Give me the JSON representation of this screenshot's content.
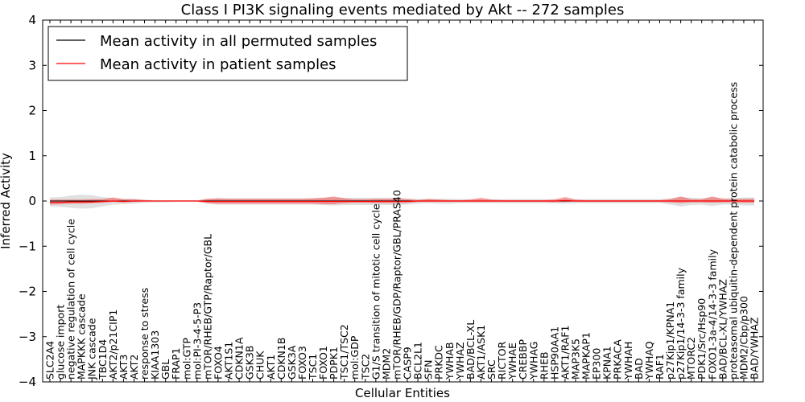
{
  "chart_data": {
    "type": "line",
    "title": "Class I PI3K signaling events mediated by Akt -- 272 samples",
    "xlabel": "Cellular Entities",
    "ylabel": "Inferred Activity",
    "ylim": [
      -4,
      4
    ],
    "yticks": [
      -4,
      -3,
      -2,
      -1,
      0,
      1,
      2,
      3,
      4
    ],
    "legend": {
      "position": "top-left",
      "entries": [
        "Mean activity in all permuted samples",
        "Mean activity in patient samples"
      ]
    },
    "categories": [
      "SLC2A4",
      "glucose import",
      "negative regulation of cell cycle",
      "MAPKKK cascade",
      "JNK cascade",
      "TBC1D4",
      "AKT2/p21CIP1",
      "AKT3",
      "AKT2",
      "response to stress",
      "KIAA1303",
      "GBL",
      "FRAP1",
      "mol:GTP",
      "mol:PI-3-4-5-P3",
      "mTOR/RHEB/GTP/Raptor/GBL",
      "FOXO4",
      "AKT1S1",
      "CDKN1A",
      "GSK3B",
      "CHUK",
      "AKT1",
      "CDKN1B",
      "GSK3A",
      "FOXO3",
      "TSC1",
      "FOXO1",
      "PDPK1",
      "TSC1/TSC2",
      "mol:GDP",
      "TSC2",
      "G1/S transition of mitotic cell cycle",
      "MDM2",
      "mTOR/RHEB/GDP/Raptor/GBL/PRAS40",
      "CASP9",
      "BCL2L1",
      "SFN",
      "PRKDC",
      "YWHAB",
      "YWHAZ",
      "BAD/BCL-XL",
      "AKT1/ASK1",
      "SRC",
      "RICTOR",
      "YWHAE",
      "CREBBP",
      "YWHAG",
      "RHEB",
      "HSP90AA1",
      "AKT1/RAF1",
      "MAP3K5",
      "MAPKAP1",
      "EP300",
      "KPNA1",
      "PRKACA",
      "YWHAH",
      "BAD",
      "YWHAQ",
      "RAF1",
      "p27Kip1/KPNA1",
      "p27Kip1/14-3-3 family",
      "MTORC2",
      "PDK1/Src/Hsp90",
      "FOXO1-3a-4/14-3-3 family",
      "BAD/BCL-XL/YWHAZ",
      "proteasomal ubiquitin-dependent protein catabolic process",
      "MDM2/Cbp/p300",
      "BAD/YWHAZ"
    ],
    "series": [
      {
        "name": "Mean activity in all permuted samples",
        "color": "#000000",
        "values": [
          0,
          0,
          0,
          0,
          0,
          0,
          0,
          0,
          0,
          0,
          0,
          0,
          0,
          0,
          0,
          0,
          0,
          0,
          0,
          0,
          0,
          0,
          0,
          0,
          0,
          0,
          0,
          0,
          0,
          0,
          0,
          0,
          0,
          0,
          0,
          0,
          0,
          0,
          0,
          0,
          0,
          0,
          0,
          0,
          0,
          0,
          0,
          0,
          0,
          0,
          0,
          0,
          0,
          0,
          0,
          0,
          0,
          0,
          0,
          0,
          0,
          0,
          0,
          0,
          0,
          0,
          0,
          0
        ],
        "band_lower": [
          -0.12,
          -0.13,
          -0.15,
          -0.17,
          -0.16,
          -0.12,
          -0.08,
          -0.07,
          -0.06,
          -0.04,
          -0.03,
          -0.03,
          -0.02,
          -0.02,
          -0.02,
          -0.06,
          -0.08,
          -0.08,
          -0.08,
          -0.08,
          -0.08,
          -0.08,
          -0.08,
          -0.08,
          -0.08,
          -0.08,
          -0.09,
          -0.1,
          -0.09,
          -0.09,
          -0.09,
          -0.09,
          -0.09,
          -0.09,
          -0.08,
          -0.06,
          -0.05,
          -0.06,
          -0.06,
          -0.05,
          -0.05,
          -0.05,
          -0.05,
          -0.05,
          -0.05,
          -0.05,
          -0.05,
          -0.05,
          -0.05,
          -0.06,
          -0.05,
          -0.05,
          -0.05,
          -0.05,
          -0.05,
          -0.05,
          -0.05,
          -0.05,
          -0.05,
          -0.08,
          -0.12,
          -0.09,
          -0.08,
          -0.11,
          -0.08,
          -0.08,
          -0.1,
          -0.1
        ],
        "band_upper": [
          0.08,
          0.09,
          0.12,
          0.14,
          0.13,
          0.09,
          0.06,
          0.05,
          0.05,
          0.03,
          0.02,
          0.02,
          0.02,
          0.02,
          0.02,
          0.05,
          0.06,
          0.06,
          0.06,
          0.06,
          0.06,
          0.06,
          0.06,
          0.06,
          0.06,
          0.06,
          0.07,
          0.08,
          0.07,
          0.07,
          0.07,
          0.07,
          0.07,
          0.07,
          0.06,
          0.05,
          0.04,
          0.05,
          0.05,
          0.04,
          0.04,
          0.04,
          0.04,
          0.04,
          0.04,
          0.04,
          0.04,
          0.04,
          0.04,
          0.05,
          0.04,
          0.04,
          0.04,
          0.04,
          0.04,
          0.04,
          0.04,
          0.04,
          0.04,
          0.06,
          0.09,
          0.07,
          0.06,
          0.08,
          0.06,
          0.06,
          0.08,
          0.08
        ]
      },
      {
        "name": "Mean activity in patient samples",
        "color": "#ff0000",
        "values": [
          -0.03,
          -0.03,
          -0.02,
          -0.02,
          -0.02,
          -0.01,
          0,
          -0.01,
          0,
          0,
          0,
          0,
          0,
          0,
          0,
          -0.01,
          -0.01,
          -0.01,
          -0.01,
          -0.01,
          -0.01,
          -0.01,
          -0.01,
          -0.01,
          -0.01,
          -0.01,
          -0.01,
          -0.01,
          -0.01,
          -0.01,
          -0.01,
          -0.01,
          -0.01,
          -0.01,
          -0.01,
          0,
          0,
          0,
          0,
          0,
          0,
          0,
          0,
          0,
          0,
          0,
          0,
          0,
          0,
          0.01,
          0,
          0,
          0,
          0,
          0,
          0,
          0,
          0,
          0,
          0,
          0,
          0,
          0,
          0,
          0,
          0,
          0,
          0
        ],
        "band_lower": [
          -0.08,
          -0.07,
          -0.06,
          -0.06,
          -0.05,
          -0.04,
          -0.02,
          -0.03,
          -0.02,
          -0.01,
          -0.01,
          -0.01,
          -0.01,
          -0.01,
          -0.01,
          -0.05,
          -0.06,
          -0.06,
          -0.06,
          -0.06,
          -0.06,
          -0.06,
          -0.06,
          -0.06,
          -0.06,
          -0.06,
          -0.07,
          -0.07,
          -0.05,
          -0.04,
          -0.04,
          -0.05,
          -0.05,
          -0.05,
          -0.04,
          -0.02,
          -0.02,
          -0.02,
          -0.02,
          -0.02,
          -0.02,
          -0.02,
          -0.02,
          -0.02,
          -0.02,
          -0.02,
          -0.02,
          -0.02,
          -0.03,
          -0.02,
          -0.02,
          -0.02,
          -0.02,
          -0.02,
          -0.02,
          -0.02,
          -0.02,
          -0.02,
          -0.02,
          -0.03,
          -0.05,
          -0.03,
          -0.03,
          -0.04,
          -0.03,
          -0.03,
          -0.04,
          -0.04
        ],
        "band_upper": [
          0.03,
          0.03,
          0.03,
          0.03,
          0.04,
          0.04,
          0.08,
          0.04,
          0.04,
          0.02,
          0.01,
          0.01,
          0.01,
          0.01,
          0.01,
          0.05,
          0.06,
          0.05,
          0.05,
          0.05,
          0.05,
          0.05,
          0.05,
          0.05,
          0.05,
          0.06,
          0.07,
          0.1,
          0.06,
          0.04,
          0.04,
          0.05,
          0.05,
          0.05,
          0.04,
          0.02,
          0.05,
          0.03,
          0.02,
          0.02,
          0.03,
          0.07,
          0.03,
          0.02,
          0.02,
          0.02,
          0.02,
          0.02,
          0.03,
          0.09,
          0.03,
          0.02,
          0.02,
          0.02,
          0.02,
          0.02,
          0.02,
          0.02,
          0.02,
          0.04,
          0.1,
          0.04,
          0.04,
          0.1,
          0.05,
          0.04,
          0.05,
          0.05
        ]
      }
    ]
  }
}
